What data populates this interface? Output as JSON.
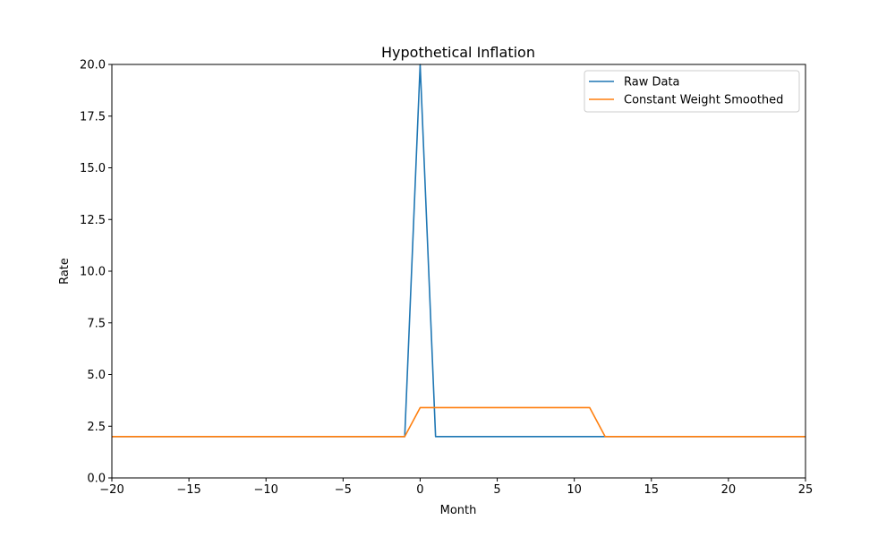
{
  "chart_data": {
    "type": "line",
    "title": "Hypothetical Inflation",
    "xlabel": "Month",
    "ylabel": "Rate",
    "xlim": [
      -20,
      25
    ],
    "ylim": [
      0,
      20
    ],
    "xticks": [
      -20,
      -15,
      -10,
      -5,
      0,
      5,
      10,
      15,
      20,
      25
    ],
    "yticks": [
      0,
      2.5,
      5,
      7.5,
      10,
      12.5,
      15,
      17.5,
      20
    ],
    "xtick_labels": [
      "−20",
      "−15",
      "−10",
      "−5",
      "0",
      "5",
      "10",
      "15",
      "20",
      "25"
    ],
    "ytick_labels": [
      "0.0",
      "2.5",
      "5.0",
      "7.5",
      "10.0",
      "12.5",
      "15.0",
      "17.5",
      "20.0"
    ],
    "grid": false,
    "legend_position": "top-right",
    "series": [
      {
        "name": "Raw Data",
        "color": "#1f77b4",
        "x": [
          -20,
          -1,
          0,
          1,
          25
        ],
        "y": [
          2,
          2,
          20,
          2,
          2
        ]
      },
      {
        "name": "Constant Weight Smoothed",
        "color": "#ff7f0e",
        "x": [
          -20,
          -1,
          0,
          11,
          12,
          25
        ],
        "y": [
          2,
          2,
          3.4,
          3.4,
          2,
          2
        ]
      }
    ]
  }
}
